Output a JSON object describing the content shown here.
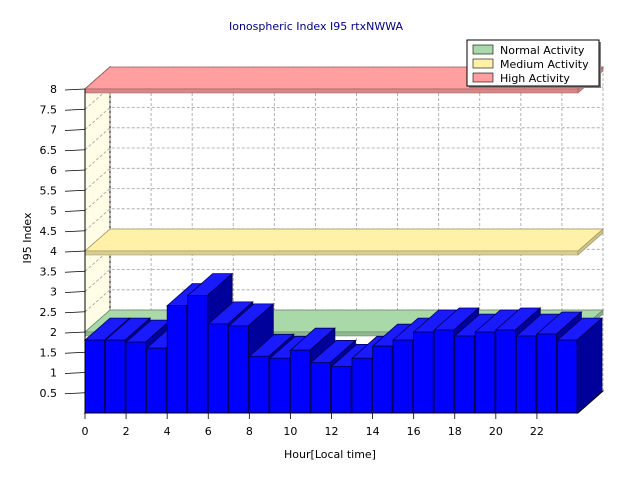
{
  "chart_data": {
    "type": "bar",
    "title": "Ionospheric Index I95 rtxNWWA",
    "xlabel": "Hour[Local time]",
    "ylabel": "I95 Index",
    "x_tick_labels": [
      "0",
      "2",
      "4",
      "6",
      "8",
      "10",
      "12",
      "14",
      "16",
      "18",
      "20",
      "22"
    ],
    "y_tick_labels": [
      "0.5",
      "1",
      "1.5",
      "2",
      "2.5",
      "3",
      "3.5",
      "4",
      "4.5",
      "5",
      "5.5",
      "6",
      "6.5",
      "7",
      "7.5",
      "8"
    ],
    "ylim": [
      0,
      8
    ],
    "categories": [
      "0",
      "1",
      "2",
      "3",
      "4",
      "5",
      "6",
      "7",
      "8",
      "9",
      "10",
      "11",
      "12",
      "13",
      "14",
      "15",
      "16",
      "17",
      "18",
      "19",
      "20",
      "21",
      "22",
      "23"
    ],
    "values": [
      1.8,
      1.8,
      1.75,
      1.6,
      2.65,
      2.9,
      2.2,
      2.15,
      1.4,
      1.35,
      1.55,
      1.25,
      1.15,
      1.35,
      1.65,
      1.8,
      2.0,
      2.05,
      1.9,
      2.0,
      2.05,
      1.9,
      1.95,
      1.8
    ],
    "bar_color": "#0000ff",
    "grid": true,
    "legend_position": "top-right",
    "bands": [
      {
        "name": "Normal Activity",
        "value": 2.0,
        "color": "#a9d9a9"
      },
      {
        "name": "Medium Activity",
        "value": 4.0,
        "color": "#fff2a8"
      },
      {
        "name": "High Activity",
        "value": 8.0,
        "color": "#ff9f9f"
      }
    ]
  }
}
